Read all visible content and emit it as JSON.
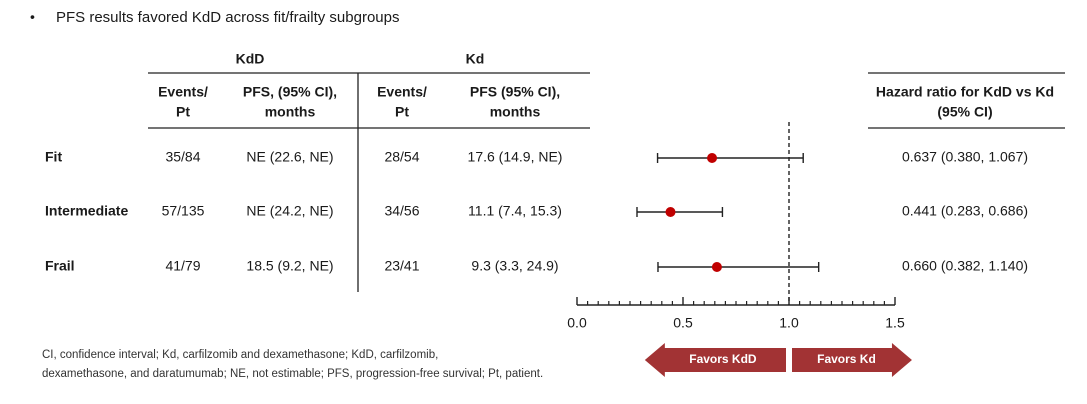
{
  "chart_data": {
    "type": "forest",
    "bullet": "PFS results favored KdD across fit/frailty subgroups",
    "group_headers": [
      "KdD",
      "Kd"
    ],
    "column_headers": [
      [
        "Events/",
        "Pt"
      ],
      [
        "PFS, (95% CI),",
        "months"
      ],
      [
        "Events/",
        "Pt"
      ],
      [
        "PFS (95% CI),",
        "months"
      ]
    ],
    "hr_header": [
      "Hazard ratio for KdD vs Kd",
      "(95% CI)"
    ],
    "categories": [
      "Fit",
      "Intermediate",
      "Frail"
    ],
    "table": [
      [
        "35/84",
        "NE (22.6, NE)",
        "28/54",
        "17.6 (14.9, NE)"
      ],
      [
        "57/135",
        "NE (24.2, NE)",
        "34/56",
        "11.1 (7.4, 15.3)"
      ],
      [
        "41/79",
        "18.5 (9.2, NE)",
        "23/41",
        "9.3 (3.3, 24.9)"
      ]
    ],
    "values": [
      0.637,
      0.441,
      0.66
    ],
    "lower": [
      0.38,
      0.283,
      0.382
    ],
    "upper": [
      1.067,
      0.686,
      1.14
    ],
    "value_labels": [
      "0.637 (0.380, 1.067)",
      "0.441 (0.283, 0.686)",
      "0.660 (0.382, 1.140)"
    ],
    "color": "#c00000",
    "xlim": [
      0,
      1.5
    ],
    "xticks": [
      {
        "value": 0,
        "label": "0.0"
      },
      {
        "value": 0.5,
        "label": "0.5"
      },
      {
        "value": 1,
        "label": "1.0"
      },
      {
        "value": 1.5,
        "label": "1.5"
      }
    ],
    "xminorticks": [
      0.05,
      0.1,
      0.15,
      0.2,
      0.25,
      0.3,
      0.35,
      0.4,
      0.45,
      0.55,
      0.6,
      0.65,
      0.7,
      0.75,
      0.8,
      0.85,
      0.9,
      0.95,
      1.05,
      1.1,
      1.15,
      1.2,
      1.25,
      1.3,
      1.35,
      1.4,
      1.45
    ],
    "reference": 1,
    "arrows": [
      "Favors KdD",
      "Favors Kd"
    ],
    "arrow_color": "#a23334",
    "footnote": [
      "CI, confidence interval; Kd, carfilzomib and dexamethasone; KdD, carfilzomib,",
      "dexamethasone, and daratumumab; NE, not estimable; PFS, progression-free survival; Pt, patient."
    ]
  }
}
